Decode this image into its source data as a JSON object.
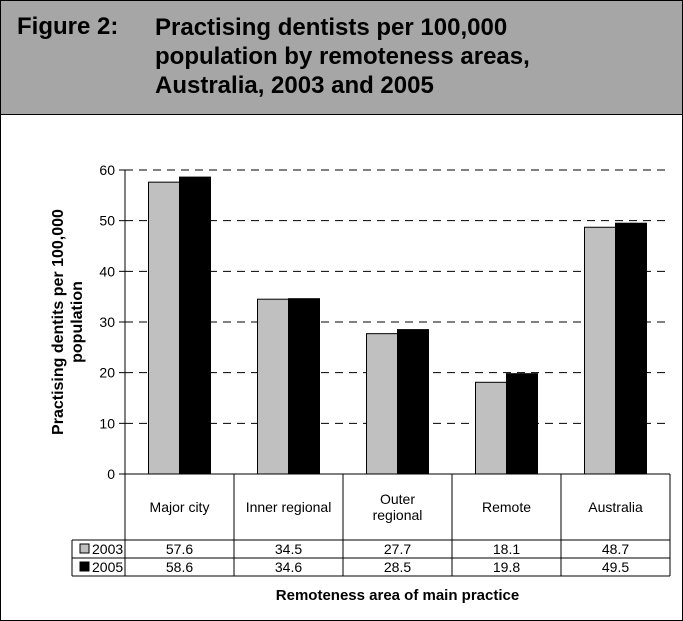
{
  "figure": {
    "label": "Figure 2:",
    "title_lines": [
      "Practising dentists per 100,000",
      "population by remoteness areas,",
      "Australia, 2003 and 2005"
    ]
  },
  "chart_data": {
    "type": "bar",
    "categories": [
      [
        "Major city"
      ],
      [
        "Inner regional"
      ],
      [
        "Outer",
        "regional"
      ],
      [
        "Remote"
      ],
      [
        "Australia"
      ]
    ],
    "series": [
      {
        "name": "2003",
        "color": "#c0c0c0",
        "values": [
          57.6,
          34.5,
          27.7,
          18.1,
          48.7
        ]
      },
      {
        "name": "2005",
        "color": "#000000",
        "values": [
          58.6,
          34.6,
          28.5,
          19.8,
          49.5
        ]
      }
    ],
    "ylabel_lines": [
      "Practising dentits per 100,000",
      "population"
    ],
    "xlabel": "Remoteness area of main practice",
    "yticks": [
      0,
      10,
      20,
      30,
      40,
      50,
      60
    ],
    "ylim": [
      0,
      60
    ],
    "grid": "dashed horizontal",
    "legend": "data table below chart",
    "table_values": [
      [
        "57.6",
        "34.5",
        "27.7",
        "18.1",
        "48.7"
      ],
      [
        "58.6",
        "34.6",
        "28.5",
        "19.8",
        "49.5"
      ]
    ]
  }
}
